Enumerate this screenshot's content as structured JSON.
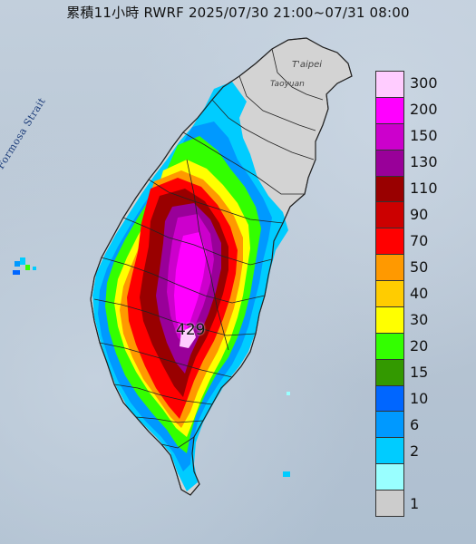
{
  "title": "累積11小時 RWRF 2025/07/30 21:00~07/31 08:00",
  "strait_label": "Formosa Strait",
  "max_value_label": "429",
  "place_labels": {
    "taipei": "T'aipei",
    "taoyuan": "Taoyuan"
  },
  "legend": {
    "items": [
      {
        "label": "300",
        "color": "#ffccff"
      },
      {
        "label": "200",
        "color": "#ff00ff"
      },
      {
        "label": "150",
        "color": "#cc00cc"
      },
      {
        "label": "130",
        "color": "#990099"
      },
      {
        "label": "110",
        "color": "#990000"
      },
      {
        "label": "90",
        "color": "#cc0000"
      },
      {
        "label": "70",
        "color": "#ff0000"
      },
      {
        "label": "50",
        "color": "#ff9900"
      },
      {
        "label": "40",
        "color": "#ffcc00"
      },
      {
        "label": "30",
        "color": "#ffff00"
      },
      {
        "label": "20",
        "color": "#33ff00"
      },
      {
        "label": "15",
        "color": "#339900"
      },
      {
        "label": "10",
        "color": "#0066ff"
      },
      {
        "label": "6",
        "color": "#0099ff"
      },
      {
        "label": "2",
        "color": "#00ccff"
      },
      {
        "label": "",
        "color": "#99ffff"
      },
      {
        "label": "1",
        "color": "#cccccc"
      }
    ]
  }
}
